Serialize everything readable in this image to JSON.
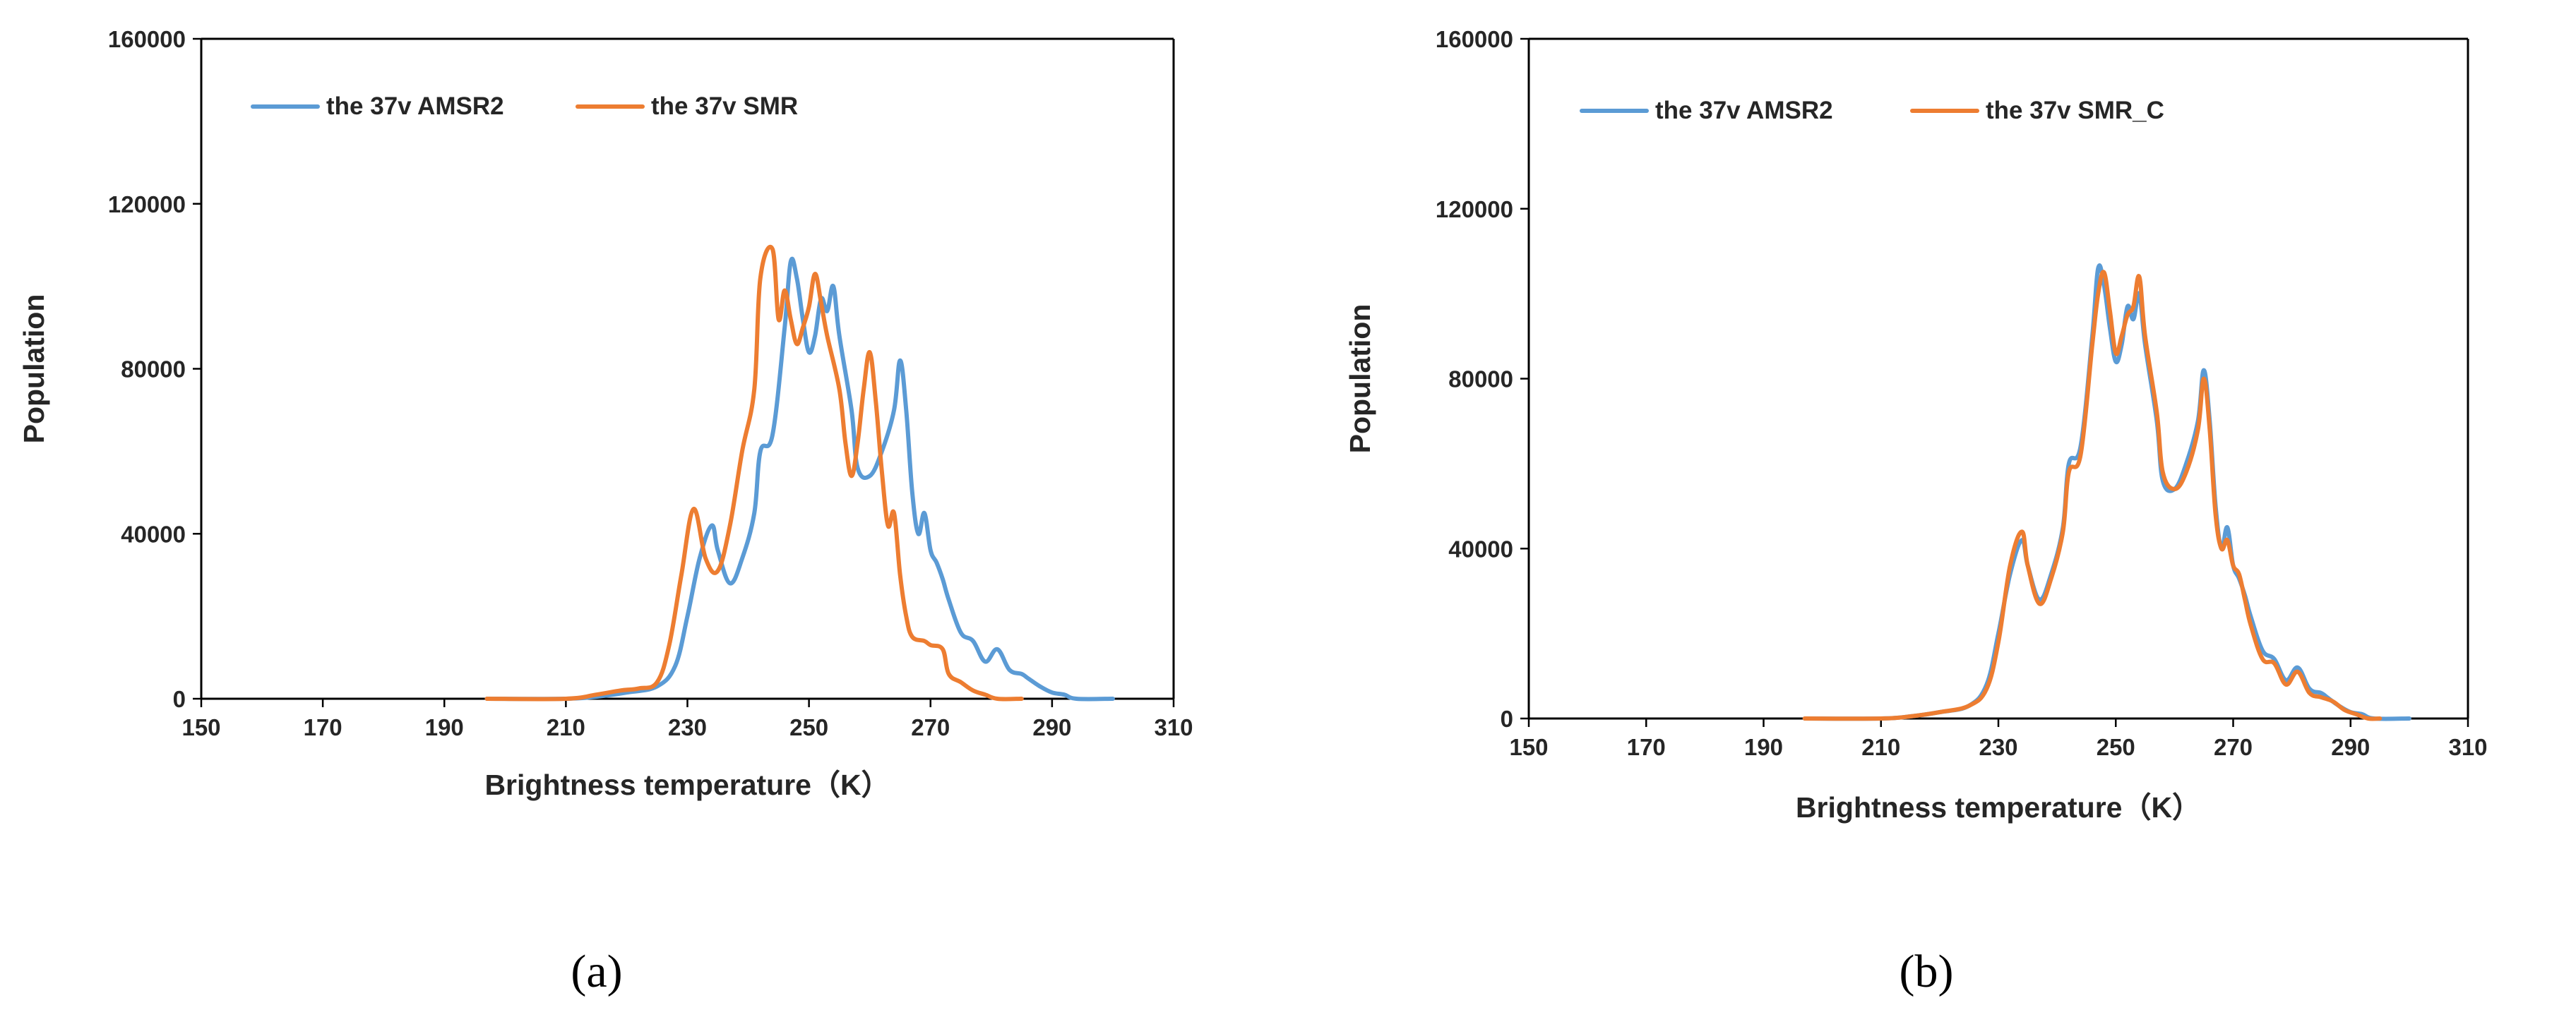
{
  "colors": {
    "amsr2": "#5b9bd5",
    "smr": "#ed7d31",
    "axis": "#000000",
    "text": "#262626"
  },
  "chart_data": [
    {
      "type": "line",
      "panel_label": "(a)",
      "xlabel": "Brightness temperature（K）",
      "ylabel": "Population",
      "xlim": [
        150,
        310
      ],
      "ylim": [
        0,
        160000
      ],
      "xticks": [
        150,
        170,
        190,
        210,
        230,
        250,
        270,
        290,
        310
      ],
      "yticks": [
        0,
        40000,
        80000,
        120000,
        160000
      ],
      "legend_position": "top-left",
      "grid": false,
      "series": [
        {
          "name": "the 37v AMSR2",
          "color": "#5b9bd5",
          "points": [
            [
              197,
              0
            ],
            [
              210,
              0
            ],
            [
              215,
              500
            ],
            [
              220,
              1500
            ],
            [
              225,
              3000
            ],
            [
              228,
              8000
            ],
            [
              230,
              20000
            ],
            [
              232,
              34000
            ],
            [
              234,
              42000
            ],
            [
              235,
              36000
            ],
            [
              237,
              28000
            ],
            [
              239,
              34000
            ],
            [
              241,
              45000
            ],
            [
              242,
              60000
            ],
            [
              244,
              64000
            ],
            [
              246,
              90000
            ],
            [
              247,
              106000
            ],
            [
              248,
              102000
            ],
            [
              249,
              92000
            ],
            [
              250,
              84000
            ],
            [
              251,
              88000
            ],
            [
              252,
              97000
            ],
            [
              253,
              94000
            ],
            [
              254,
              100000
            ],
            [
              255,
              88000
            ],
            [
              257,
              70000
            ],
            [
              258,
              56000
            ],
            [
              260,
              54000
            ],
            [
              262,
              60000
            ],
            [
              264,
              70000
            ],
            [
              265,
              82000
            ],
            [
              266,
              70000
            ],
            [
              267,
              50000
            ],
            [
              268,
              40000
            ],
            [
              269,
              45000
            ],
            [
              270,
              36000
            ],
            [
              271,
              33000
            ],
            [
              272,
              29000
            ],
            [
              273,
              24000
            ],
            [
              275,
              16000
            ],
            [
              277,
              14000
            ],
            [
              279,
              9000
            ],
            [
              281,
              12000
            ],
            [
              283,
              7000
            ],
            [
              285,
              6000
            ],
            [
              286,
              5000
            ],
            [
              288,
              3000
            ],
            [
              290,
              1500
            ],
            [
              292,
              1000
            ],
            [
              294,
              0
            ],
            [
              300,
              0
            ]
          ]
        },
        {
          "name": "the 37v SMR",
          "color": "#ed7d31",
          "points": [
            [
              197,
              0
            ],
            [
              210,
              0
            ],
            [
              215,
              1000
            ],
            [
              219,
              2000
            ],
            [
              222,
              2500
            ],
            [
              225,
              4000
            ],
            [
              227,
              13000
            ],
            [
              229,
              30000
            ],
            [
              231,
              46000
            ],
            [
              233,
              34000
            ],
            [
              235,
              31000
            ],
            [
              237,
              42000
            ],
            [
              239,
              60000
            ],
            [
              241,
              75000
            ],
            [
              242,
              102000
            ],
            [
              244,
              109000
            ],
            [
              245,
              92000
            ],
            [
              246,
              99000
            ],
            [
              247,
              92000
            ],
            [
              248,
              86000
            ],
            [
              249,
              90000
            ],
            [
              250,
              95000
            ],
            [
              251,
              103000
            ],
            [
              252,
              96000
            ],
            [
              253,
              88000
            ],
            [
              255,
              75000
            ],
            [
              256,
              62000
            ],
            [
              257,
              54000
            ],
            [
              258,
              62000
            ],
            [
              259,
              75000
            ],
            [
              260,
              84000
            ],
            [
              261,
              72000
            ],
            [
              262,
              55000
            ],
            [
              263,
              42000
            ],
            [
              264,
              45000
            ],
            [
              265,
              30000
            ],
            [
              266,
              20000
            ],
            [
              267,
              15000
            ],
            [
              269,
              14000
            ],
            [
              270,
              13000
            ],
            [
              272,
              12000
            ],
            [
              273,
              6000
            ],
            [
              275,
              4000
            ],
            [
              277,
              2000
            ],
            [
              279,
              1000
            ],
            [
              281,
              0
            ],
            [
              285,
              0
            ]
          ]
        }
      ]
    },
    {
      "type": "line",
      "panel_label": "(b)",
      "xlabel": "Brightness temperature（K）",
      "ylabel": "Population",
      "xlim": [
        150,
        310
      ],
      "ylim": [
        0,
        160000
      ],
      "xticks": [
        150,
        170,
        190,
        210,
        230,
        250,
        270,
        290,
        310
      ],
      "yticks": [
        0,
        40000,
        80000,
        120000,
        160000
      ],
      "legend_position": "top-left",
      "grid": false,
      "series": [
        {
          "name": "the 37v AMSR2",
          "color": "#5b9bd5",
          "points": [
            [
              197,
              0
            ],
            [
              210,
              0
            ],
            [
              215,
              500
            ],
            [
              220,
              1500
            ],
            [
              225,
              3000
            ],
            [
              228,
              8000
            ],
            [
              230,
              20000
            ],
            [
              232,
              34000
            ],
            [
              234,
              42000
            ],
            [
              235,
              36000
            ],
            [
              237,
              28000
            ],
            [
              239,
              34000
            ],
            [
              241,
              45000
            ],
            [
              242,
              60000
            ],
            [
              244,
              64000
            ],
            [
              246,
              90000
            ],
            [
              247,
              106000
            ],
            [
              248,
              102000
            ],
            [
              249,
              92000
            ],
            [
              250,
              84000
            ],
            [
              251,
              88000
            ],
            [
              252,
              97000
            ],
            [
              253,
              94000
            ],
            [
              254,
              100000
            ],
            [
              255,
              88000
            ],
            [
              257,
              70000
            ],
            [
              258,
              56000
            ],
            [
              260,
              54000
            ],
            [
              262,
              60000
            ],
            [
              264,
              70000
            ],
            [
              265,
              82000
            ],
            [
              266,
              70000
            ],
            [
              267,
              50000
            ],
            [
              268,
              40000
            ],
            [
              269,
              45000
            ],
            [
              270,
              36000
            ],
            [
              271,
              33000
            ],
            [
              272,
              29000
            ],
            [
              273,
              24000
            ],
            [
              275,
              16000
            ],
            [
              277,
              14000
            ],
            [
              279,
              9000
            ],
            [
              281,
              12000
            ],
            [
              283,
              7000
            ],
            [
              285,
              6000
            ],
            [
              286,
              5000
            ],
            [
              288,
              3000
            ],
            [
              290,
              1500
            ],
            [
              292,
              1000
            ],
            [
              294,
              0
            ],
            [
              300,
              0
            ]
          ]
        },
        {
          "name": "the 37v SMR_C",
          "color": "#ed7d31",
          "points": [
            [
              197,
              0
            ],
            [
              210,
              0
            ],
            [
              215,
              500
            ],
            [
              220,
              1500
            ],
            [
              225,
              3000
            ],
            [
              228,
              7000
            ],
            [
              230,
              18000
            ],
            [
              232,
              36000
            ],
            [
              234,
              44000
            ],
            [
              235,
              36000
            ],
            [
              237,
              27000
            ],
            [
              239,
              33000
            ],
            [
              241,
              44000
            ],
            [
              242,
              58000
            ],
            [
              244,
              62000
            ],
            [
              246,
              88000
            ],
            [
              247,
              100000
            ],
            [
              248,
              105000
            ],
            [
              249,
              96000
            ],
            [
              250,
              86000
            ],
            [
              251,
              90000
            ],
            [
              252,
              95000
            ],
            [
              253,
              97000
            ],
            [
              254,
              104000
            ],
            [
              255,
              90000
            ],
            [
              257,
              72000
            ],
            [
              258,
              58000
            ],
            [
              260,
              54000
            ],
            [
              262,
              58000
            ],
            [
              264,
              68000
            ],
            [
              265,
              80000
            ],
            [
              266,
              68000
            ],
            [
              267,
              48000
            ],
            [
              268,
              40000
            ],
            [
              269,
              42000
            ],
            [
              270,
              36000
            ],
            [
              271,
              34000
            ],
            [
              272,
              28000
            ],
            [
              273,
              22000
            ],
            [
              275,
              14000
            ],
            [
              277,
              13000
            ],
            [
              279,
              8000
            ],
            [
              281,
              11000
            ],
            [
              283,
              6000
            ],
            [
              285,
              5000
            ],
            [
              287,
              4000
            ],
            [
              289,
              2000
            ],
            [
              291,
              1000
            ],
            [
              293,
              0
            ],
            [
              295,
              0
            ]
          ]
        }
      ]
    }
  ]
}
